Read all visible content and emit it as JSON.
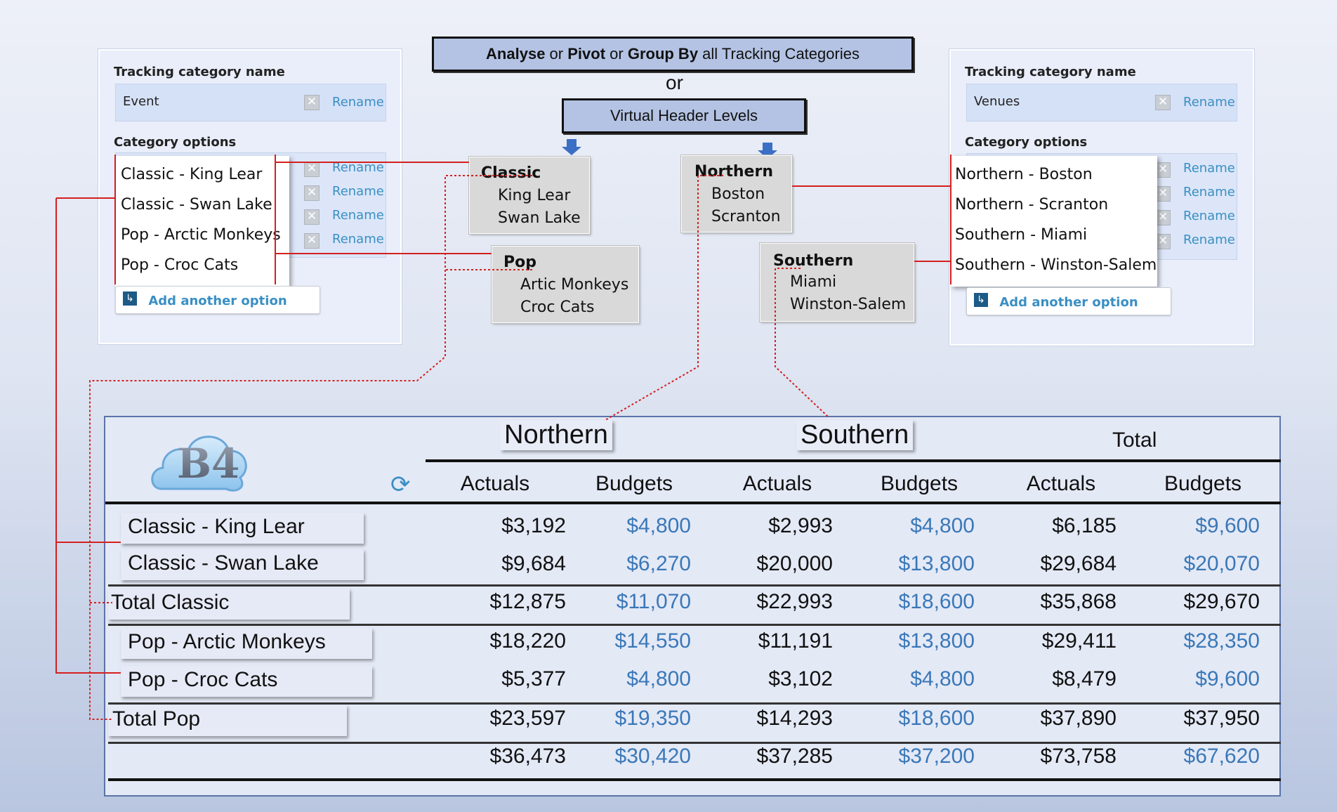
{
  "left_panel": {
    "name_label": "Tracking category name",
    "name_value": "Event",
    "rename": "Rename",
    "options_label": "Category options",
    "options": [
      "Classic - King Lear",
      "Classic - Swan Lake",
      "Pop - Arctic Monkeys",
      "Pop - Croc Cats"
    ],
    "add_label": "Add another option"
  },
  "right_panel": {
    "name_label": "Tracking category name",
    "name_value": "Venues",
    "rename": "Rename",
    "options_label": "Category options",
    "options": [
      "Northern - Boston",
      "Northern - Scranton",
      "Southern - Miami",
      "Southern - Winston-Salem"
    ],
    "add_label": "Add another option"
  },
  "header": {
    "w1": "Analyse",
    "w2": " or ",
    "w3": "Pivot",
    "w4": " or ",
    "w5": "Group By",
    "w6": " all Tracking Categories",
    "or": "or",
    "virtual": "Virtual Header Levels"
  },
  "groups": {
    "classic": {
      "title": "Classic",
      "items": [
        "King Lear",
        "Swan Lake"
      ]
    },
    "pop": {
      "title": "Pop",
      "items": [
        "Artic Monkeys",
        "Croc Cats"
      ]
    },
    "northern": {
      "title": "Northern",
      "items": [
        "Boston",
        "Scranton"
      ]
    },
    "southern": {
      "title": "Southern",
      "items": [
        "Miami",
        "Winston-Salem"
      ]
    }
  },
  "report": {
    "logo": "B4",
    "col_groups": [
      "Northern",
      "Southern",
      "Total"
    ],
    "sub_cols": [
      "Actuals",
      "Budgets",
      "Actuals",
      "Budgets",
      "Actuals",
      "Budgets"
    ],
    "rows": [
      {
        "label": "Classic - King Lear",
        "values": [
          "$3,192",
          "$4,800",
          "$2,993",
          "$4,800",
          "$6,185",
          "$9,600"
        ]
      },
      {
        "label": "Classic - Swan Lake",
        "values": [
          "$9,684",
          "$6,270",
          "$20,000",
          "$13,800",
          "$29,684",
          "$20,070"
        ]
      },
      {
        "label": "Total Classic",
        "values": [
          "$12,875",
          "$11,070",
          "$22,993",
          "$18,600",
          "$35,868",
          "$29,670"
        ]
      },
      {
        "label": "Pop - Arctic Monkeys",
        "values": [
          "$18,220",
          "$14,550",
          "$11,191",
          "$13,800",
          "$29,411",
          "$28,350"
        ]
      },
      {
        "label": "Pop - Croc Cats",
        "values": [
          "$5,377",
          "$4,800",
          "$3,102",
          "$4,800",
          "$8,479",
          "$9,600"
        ]
      },
      {
        "label": "Total Pop",
        "values": [
          "$23,597",
          "$19,350",
          "$14,293",
          "$18,600",
          "$37,890",
          "$37,950"
        ]
      },
      {
        "label": "",
        "values": [
          "$36,473",
          "$30,420",
          "$37,285",
          "$37,200",
          "$73,758",
          "$67,620"
        ]
      }
    ]
  },
  "colors": {
    "accent_blue": "#3a8fc4",
    "budget_blue": "#3a78b8",
    "connector_red": "#d42020"
  }
}
